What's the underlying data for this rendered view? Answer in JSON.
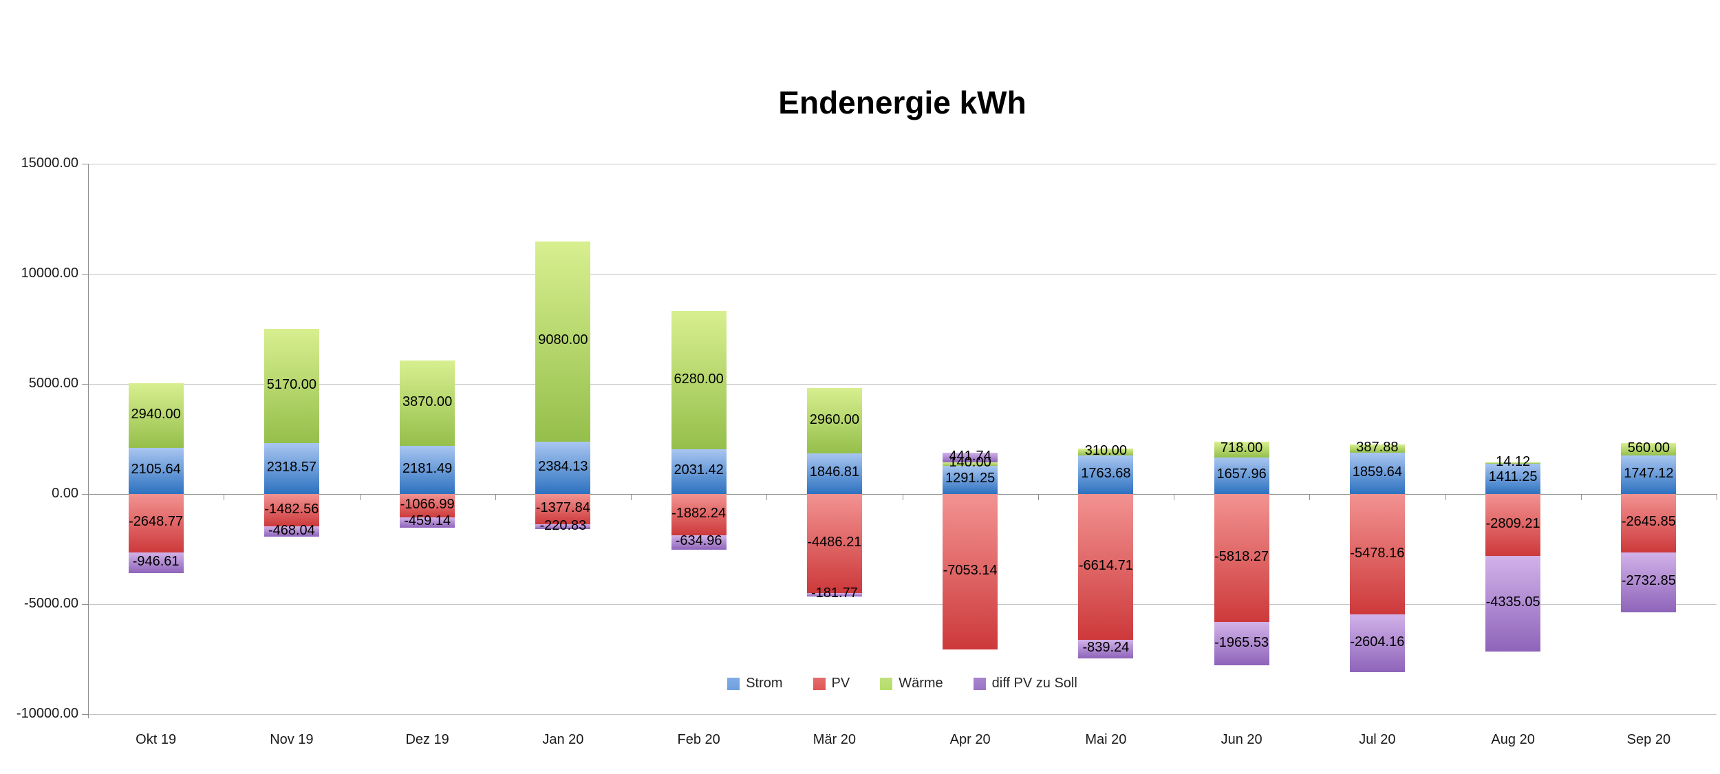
{
  "title": "Endenergie kWh",
  "y_axis": {
    "tick_labels": [
      "15000.00",
      "10000.00",
      "5000.00",
      "0.00",
      "-5000.00",
      "-10000.00"
    ],
    "tick_values": [
      15000,
      10000,
      5000,
      0,
      -5000,
      -10000
    ]
  },
  "x_axis": {
    "labels": [
      "Okt 19",
      "Nov 19",
      "Dez 19",
      "Jan 20",
      "Feb 20",
      "Mär 20",
      "Apr 20",
      "Mai 20",
      "Jun 20",
      "Jul 20",
      "Aug 20",
      "Sep 20"
    ]
  },
  "legend": {
    "items": [
      {
        "label": "Strom",
        "color": "#6d9fe0"
      },
      {
        "label": "PV",
        "color": "#e15656"
      },
      {
        "label": "Wärme",
        "color": "#b5dd68"
      },
      {
        "label": "diff PV zu Soll",
        "color": "#9b73c6"
      }
    ]
  },
  "chart_data": {
    "type": "bar",
    "stacked": true,
    "title": "Endenergie kWh",
    "categories": [
      "Okt 19",
      "Nov 19",
      "Dez 19",
      "Jan 20",
      "Feb 20",
      "Mär 20",
      "Apr 20",
      "Mai 20",
      "Jun 20",
      "Jul 20",
      "Aug 20",
      "Sep 20"
    ],
    "series": [
      {
        "name": "Strom",
        "color_top": "#a9c6f1",
        "color_bottom": "#2d72c0",
        "values": [
          2105.64,
          2318.57,
          2181.49,
          2384.13,
          2031.42,
          1846.81,
          1291.25,
          1763.68,
          1657.96,
          1859.64,
          1411.25,
          1747.12
        ]
      },
      {
        "name": "PV",
        "color_top": "#f29391",
        "color_bottom": "#cd393b",
        "values": [
          -2648.77,
          -1482.56,
          -1066.99,
          -1377.84,
          -1882.24,
          -4486.21,
          -7053.14,
          -6614.71,
          -5818.27,
          -5478.16,
          -2809.21,
          -2645.85
        ]
      },
      {
        "name": "Wärme",
        "color_top": "#d8ef90",
        "color_bottom": "#95bf4b",
        "values": [
          2940.0,
          5170.0,
          3870.0,
          9080.0,
          6280.0,
          2960.0,
          140.0,
          310.0,
          718.0,
          387.88,
          14.12,
          560.0
        ]
      },
      {
        "name": "diff PV zu Soll",
        "color_top": "#d2b2e9",
        "color_bottom": "#8e64ba",
        "values": [
          -946.61,
          -468.04,
          -459.14,
          -220.83,
          -634.96,
          -181.77,
          441.74,
          -839.24,
          -1965.53,
          -2604.16,
          -4335.05,
          -2732.85
        ]
      }
    ],
    "ylim": [
      -10000,
      15000
    ],
    "y_step": 5000,
    "grid": true,
    "legend_position": "bottom-inside",
    "data_labels": "all points, two decimals"
  }
}
